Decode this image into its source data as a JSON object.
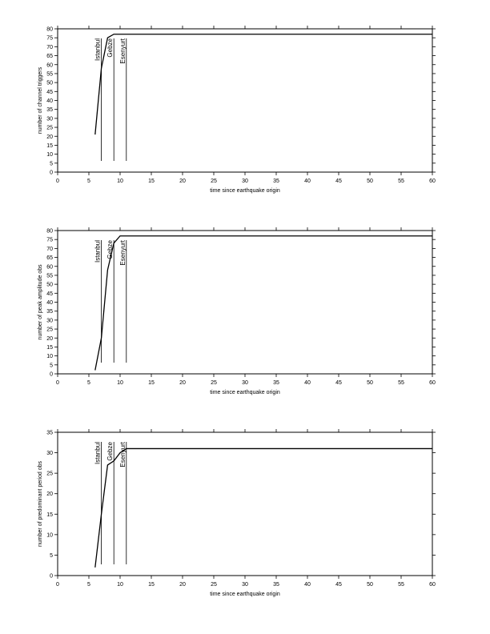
{
  "chart_data": [
    {
      "type": "line",
      "y_label": "number of channel triggers",
      "x_label": "time since earthquake origin",
      "x": [
        6,
        7,
        8,
        9,
        60
      ],
      "values": [
        21,
        58,
        75,
        77,
        77
      ],
      "color": "#000000",
      "xlim": [
        0,
        60
      ],
      "ylim": [
        0,
        80
      ],
      "xticks": [
        0,
        5,
        10,
        15,
        20,
        25,
        30,
        35,
        40,
        45,
        50,
        55,
        60
      ],
      "yticks": [
        0,
        5,
        10,
        15,
        20,
        25,
        30,
        35,
        40,
        45,
        50,
        55,
        60,
        65,
        70,
        75,
        80
      ],
      "annotations": [
        {
          "text": "Istanbul",
          "x": 7
        },
        {
          "text": "Gebze",
          "x": 9
        },
        {
          "text": "Esenyurt",
          "x": 11
        }
      ]
    },
    {
      "type": "line",
      "y_label": "number of peak amplitude obs",
      "x_label": "time since earthquake origin",
      "x": [
        6,
        7,
        8,
        9,
        10,
        60
      ],
      "values": [
        2,
        20,
        58,
        73,
        77,
        77
      ],
      "color": "#000000",
      "xlim": [
        0,
        60
      ],
      "ylim": [
        0,
        80
      ],
      "xticks": [
        0,
        5,
        10,
        15,
        20,
        25,
        30,
        35,
        40,
        45,
        50,
        55,
        60
      ],
      "yticks": [
        0,
        5,
        10,
        15,
        20,
        25,
        30,
        35,
        40,
        45,
        50,
        55,
        60,
        65,
        70,
        75,
        80
      ],
      "annotations": [
        {
          "text": "Istanbul",
          "x": 7
        },
        {
          "text": "Gebze",
          "x": 9
        },
        {
          "text": "Esenyurt",
          "x": 11
        }
      ]
    },
    {
      "type": "line",
      "y_label": "number of predominant period obs",
      "x_label": "time since earthquake origin",
      "x": [
        6,
        7,
        8,
        9,
        10,
        11,
        60
      ],
      "values": [
        2,
        15,
        27,
        28,
        30,
        31,
        31
      ],
      "color": "#000000",
      "xlim": [
        0,
        60
      ],
      "ylim": [
        0,
        35
      ],
      "xticks": [
        0,
        5,
        10,
        15,
        20,
        25,
        30,
        35,
        40,
        45,
        50,
        55,
        60
      ],
      "yticks": [
        0,
        5,
        10,
        15,
        20,
        25,
        30,
        35
      ],
      "annotations": [
        {
          "text": "Istanbul",
          "x": 7
        },
        {
          "text": "Gebze",
          "x": 9
        },
        {
          "text": "Esenyurt",
          "x": 11
        }
      ]
    }
  ]
}
